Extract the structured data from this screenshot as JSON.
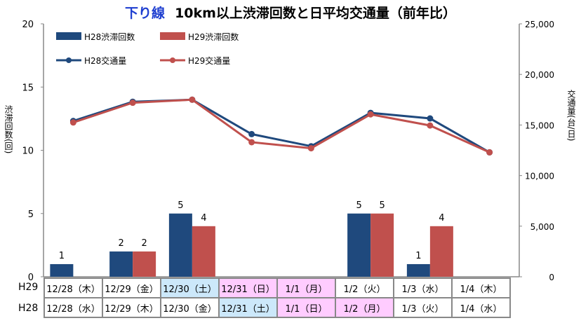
{
  "title": {
    "prefix": "下り線",
    "main": "10km以上渋滞回数と日平均交通量（前年比）"
  },
  "colors": {
    "h28": "#1f497d",
    "h29": "#c0504d",
    "weekend": "#cce8fa",
    "holiday": "#ffccff"
  },
  "chart_data": {
    "type": "bar+line",
    "categories": [
      "12/28",
      "12/29",
      "12/30",
      "12/31",
      "1/1",
      "1/2",
      "1/3",
      "1/4"
    ],
    "left_axis": {
      "label": "渋滞回数(回)",
      "range": [
        0,
        20
      ],
      "ticks": [
        "0",
        "5",
        "10",
        "15",
        "20"
      ]
    },
    "right_axis": {
      "label": "交通量(台/日)",
      "range": [
        0,
        25000
      ],
      "ticks": [
        "0",
        "5,000",
        "10,000",
        "15,000",
        "20,000",
        "25,000"
      ]
    },
    "series": [
      {
        "name": "H28渋滞回数",
        "type": "bar",
        "axis": "left",
        "values": [
          1,
          2,
          5,
          0,
          0,
          5,
          1,
          0
        ]
      },
      {
        "name": "H29渋滞回数",
        "type": "bar",
        "axis": "left",
        "values": [
          0,
          2,
          4,
          0,
          0,
          5,
          4,
          0
        ]
      },
      {
        "name": "H28交通量",
        "type": "line",
        "axis": "right",
        "values": [
          15400,
          17300,
          17500,
          14100,
          12900,
          16200,
          15650,
          12300
        ]
      },
      {
        "name": "H29交通量",
        "type": "line",
        "axis": "right",
        "values": [
          15250,
          17200,
          17500,
          13300,
          12700,
          16050,
          14950,
          12300
        ]
      }
    ],
    "legend": "top-left"
  },
  "table": {
    "rows": [
      {
        "label": "H29",
        "cells": [
          {
            "t": "12/28（木）",
            "c": ""
          },
          {
            "t": "12/29（金）",
            "c": ""
          },
          {
            "t": "12/30（土）",
            "c": "weekend"
          },
          {
            "t": "12/31（日）",
            "c": "holiday"
          },
          {
            "t": "1/1（月）",
            "c": "holiday"
          },
          {
            "t": "1/2（火）",
            "c": ""
          },
          {
            "t": "1/3（水）",
            "c": ""
          },
          {
            "t": "1/4（木）",
            "c": ""
          }
        ]
      },
      {
        "label": "H28",
        "cells": [
          {
            "t": "12/28（水）",
            "c": ""
          },
          {
            "t": "12/29（木）",
            "c": ""
          },
          {
            "t": "12/30（金）",
            "c": ""
          },
          {
            "t": "12/31（土）",
            "c": "weekend"
          },
          {
            "t": "1/1（日）",
            "c": "holiday"
          },
          {
            "t": "1/2（月）",
            "c": "holiday"
          },
          {
            "t": "1/3（火）",
            "c": ""
          },
          {
            "t": "1/4（水）",
            "c": ""
          }
        ]
      }
    ]
  }
}
